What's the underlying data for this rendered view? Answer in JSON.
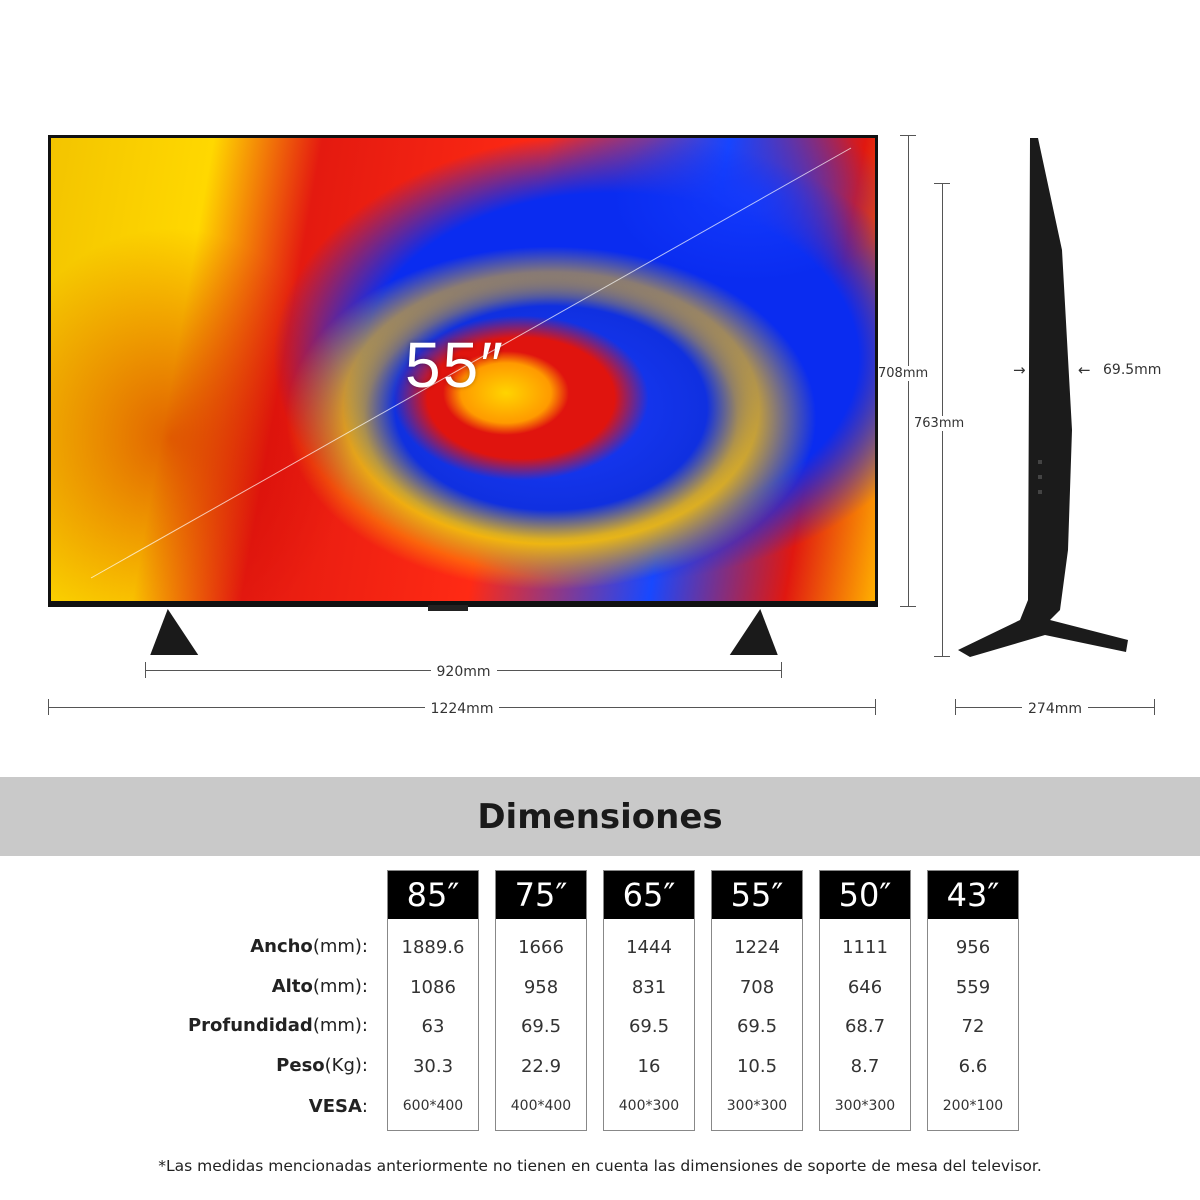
{
  "tv": {
    "size_label": "55″"
  },
  "dimensions": {
    "stand_width": "920mm",
    "total_width": "1224mm",
    "panel_height": "708mm",
    "total_height": "763mm",
    "depth": "69.5mm",
    "stand_depth": "274mm"
  },
  "section_title": "Dimensiones",
  "table": {
    "sizes": [
      "85″",
      "75″",
      "65″",
      "55″",
      "50″",
      "43″"
    ],
    "rows": [
      {
        "label": "Ancho",
        "unit": "(mm):",
        "values": [
          "1889.6",
          "1666",
          "1444",
          "1224",
          "1111",
          "956"
        ]
      },
      {
        "label": "Alto",
        "unit": "(mm):",
        "values": [
          "1086",
          "958",
          "831",
          "708",
          "646",
          "559"
        ]
      },
      {
        "label": "Profundidad",
        "unit": "(mm):",
        "values": [
          "63",
          "69.5",
          "69.5",
          "69.5",
          "68.7",
          "72"
        ]
      },
      {
        "label": "Peso",
        "unit": "(Kg):",
        "values": [
          "30.3",
          "22.9",
          "16",
          "10.5",
          "8.7",
          "6.6"
        ]
      },
      {
        "label": "VESA",
        "unit": ":",
        "values": [
          "600*400",
          "400*400",
          "400*300",
          "300*300",
          "300*300",
          "200*100"
        ]
      }
    ]
  },
  "footnote": "*Las medidas mencionadas anteriormente no tienen en cuenta las dimensiones de soporte de mesa del televisor."
}
